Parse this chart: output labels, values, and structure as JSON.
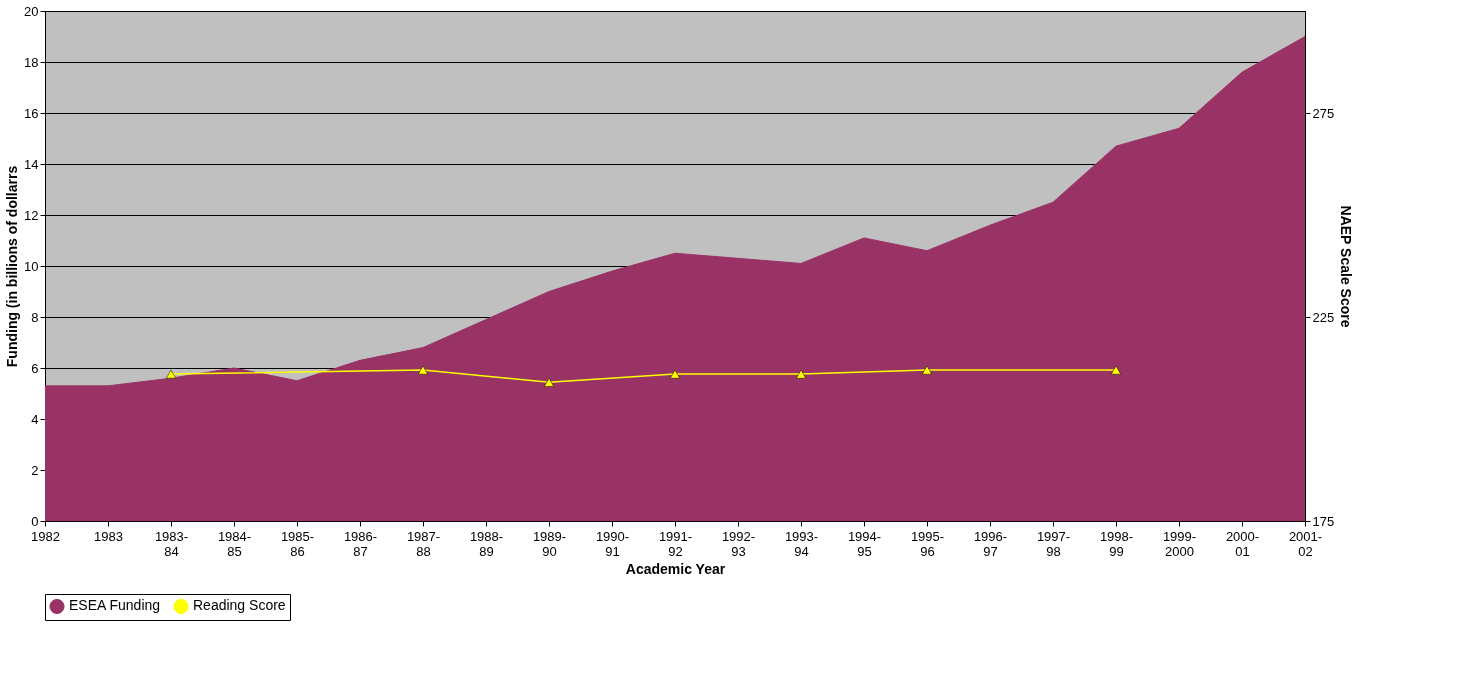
{
  "chart_data": {
    "type": "area",
    "xlabel": "Academic Year",
    "ylabel": "Funding (in billions of dollarrs",
    "y2label": "NAEP Scale Score",
    "categories": [
      "1982",
      "1983",
      "1983-84",
      "1984-85",
      "1985-86",
      "1986-87",
      "1987-88",
      "1988-89",
      "1989-90",
      "1990-91",
      "1991-92",
      "1992-93",
      "1993-94",
      "1994-95",
      "1995-96",
      "1996-97",
      "1997-98",
      "1998-99",
      "1999-2000",
      "2000-01",
      "2001-02"
    ],
    "series": [
      {
        "name": "ESEA Funding",
        "color": "#993366",
        "values": [
          5.3,
          5.3,
          5.6,
          6.0,
          5.5,
          6.3,
          6.8,
          7.9,
          9.0,
          9.8,
          10.5,
          10.3,
          10.1,
          11.1,
          10.6,
          11.6,
          12.5,
          14.7,
          15.4,
          17.6,
          19.0
        ]
      },
      {
        "name": "Reading Score",
        "type": "line",
        "axis": "y2",
        "color": "#ffff00",
        "marker": "triangle",
        "values": [
          null,
          null,
          211,
          null,
          null,
          null,
          212,
          null,
          209,
          null,
          211,
          null,
          211,
          null,
          212,
          null,
          null,
          212,
          null,
          null,
          null
        ]
      }
    ],
    "ylim": [
      0,
      20
    ],
    "yticks": [
      0,
      2,
      4,
      6,
      8,
      10,
      12,
      14,
      16,
      18,
      20
    ],
    "y2lim": [
      175,
      300
    ],
    "y2ticks": [
      175,
      225,
      275
    ],
    "grid": "y",
    "legend": "bottom"
  }
}
